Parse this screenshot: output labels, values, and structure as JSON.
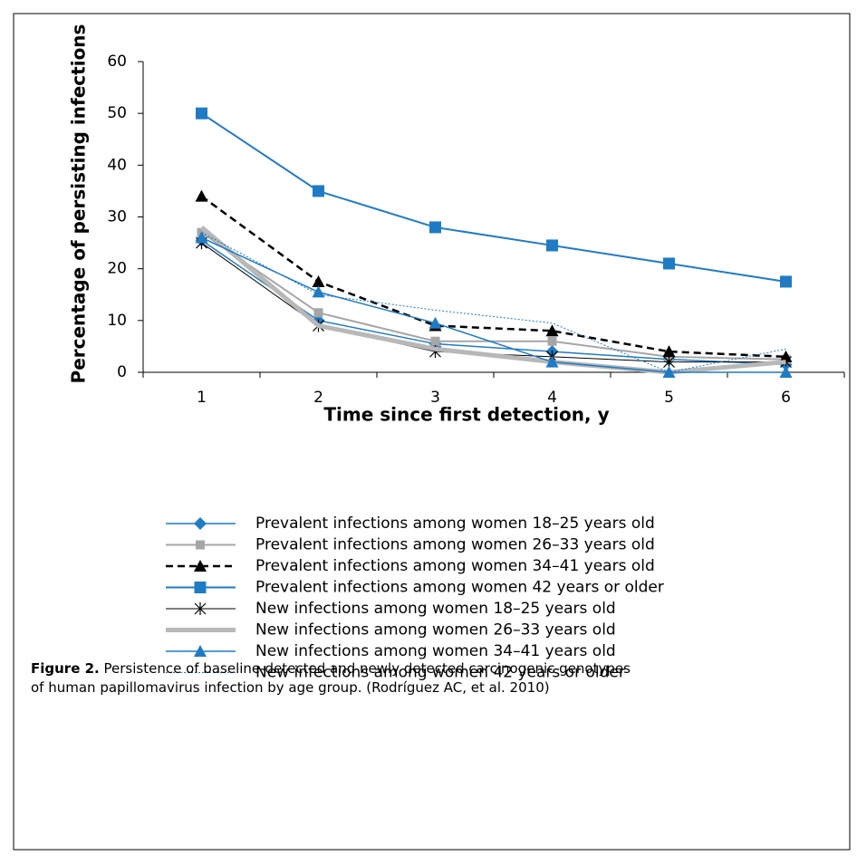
{
  "chart_data": {
    "type": "line",
    "xlabel": "Time since first detection, y",
    "ylabel": "Percentage of persisting infections",
    "categories": [
      "1",
      "2",
      "3",
      "4",
      "5",
      "6"
    ],
    "ylim": [
      0,
      60
    ],
    "yticks": [
      0,
      10,
      20,
      30,
      40,
      50,
      60
    ],
    "series": [
      {
        "name": "Prevalent infections among women 18–25 years old",
        "color": "#1f7bc4",
        "marker": "diamond",
        "dash": "solid",
        "width": 1.5,
        "values": [
          25.5,
          10,
          5.5,
          4,
          2.5,
          1.5
        ]
      },
      {
        "name": "Prevalent infections among women 26–33 years old",
        "color": "#a6a6a6",
        "marker": "square-small",
        "dash": "solid",
        "width": 2,
        "values": [
          27,
          11.5,
          6,
          6,
          3,
          2.5
        ]
      },
      {
        "name": "Prevalent infections among women 34–41 years old",
        "color": "#000000",
        "marker": "triangle",
        "dash": "dashed",
        "width": 2.5,
        "values": [
          34,
          17.5,
          9,
          8,
          4,
          3
        ]
      },
      {
        "name": "Prevalent infections among women 42 years or older",
        "color": "#1f7bc4",
        "marker": "square",
        "dash": "solid",
        "width": 2,
        "values": [
          50,
          35,
          28,
          24.5,
          21,
          17.5
        ]
      },
      {
        "name": "New infections among women 18–25 years old",
        "color": "#000000",
        "marker": "asterisk",
        "dash": "solid",
        "width": 1,
        "values": [
          25,
          9,
          4,
          3,
          2,
          2
        ]
      },
      {
        "name": "New infections among women 26–33 years old",
        "color": "#b8b8b8",
        "marker": "none",
        "dash": "solid",
        "width": 5,
        "values": [
          28,
          9,
          4.5,
          2,
          0,
          2
        ]
      },
      {
        "name": "New infections among women 34–41 years old",
        "color": "#1f7bc4",
        "marker": "triangle",
        "dash": "solid",
        "width": 1.5,
        "values": [
          26,
          15.5,
          9.5,
          2,
          0,
          0
        ]
      },
      {
        "name": "New infections among women 42 years or older",
        "color": "#1f7bc4",
        "marker": "none",
        "dash": "dotted",
        "width": 1,
        "values": [
          27,
          15,
          12,
          9.5,
          0,
          4.5
        ]
      }
    ]
  },
  "caption": {
    "label": "Figure 2.",
    "text": "Persistence of baseline-detected and newly detected carcinogenic genotypes of human papillomavirus infection by age group. (Rodríguez AC, et al. 2010)"
  }
}
